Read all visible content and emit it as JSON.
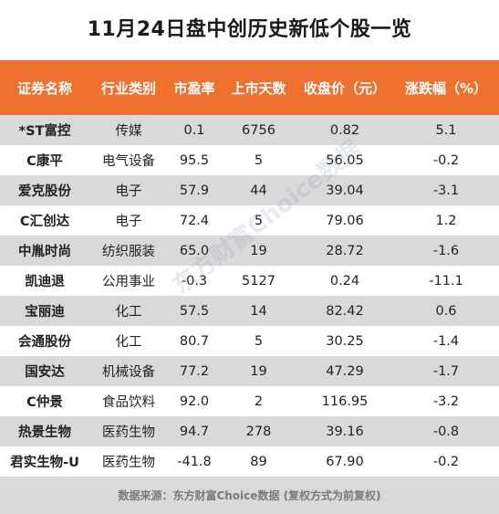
{
  "title": "11月24日盘中创历史新低个股一览",
  "colors": {
    "header_bg": "#ee7130",
    "row_alt_bg": "#d9d9d9",
    "footer_bg": "#d9d9d9"
  },
  "table": {
    "headers": [
      "证券名称",
      "行业类别",
      "市盈率",
      "上市天数",
      "收盘价（元）",
      "涨跌幅（%）"
    ],
    "rows": [
      [
        "*ST富控",
        "传媒",
        "0.1",
        "6756",
        "0.82",
        "5.1"
      ],
      [
        "C康平",
        "电气设备",
        "95.5",
        "5",
        "56.05",
        "-0.2"
      ],
      [
        "爱克股份",
        "电子",
        "57.9",
        "44",
        "39.04",
        "-3.1"
      ],
      [
        "C汇创达",
        "电子",
        "72.4",
        "5",
        "79.06",
        "1.2"
      ],
      [
        "中胤时尚",
        "纺织服装",
        "65.0",
        "19",
        "28.72",
        "-1.6"
      ],
      [
        "凯迪退",
        "公用事业",
        "-0.3",
        "5127",
        "0.24",
        "-11.1"
      ],
      [
        "宝丽迪",
        "化工",
        "57.5",
        "14",
        "82.42",
        "0.6"
      ],
      [
        "会通股份",
        "化工",
        "80.7",
        "5",
        "30.25",
        "-1.4"
      ],
      [
        "国安达",
        "机械设备",
        "77.2",
        "19",
        "47.29",
        "-1.7"
      ],
      [
        "C仲景",
        "食品饮料",
        "92.0",
        "2",
        "116.95",
        "-3.2"
      ],
      [
        "热景生物",
        "医药生物",
        "94.7",
        "278",
        "39.16",
        "-0.8"
      ],
      [
        "君实生物-U",
        "医药生物",
        "-41.8",
        "89",
        "67.90",
        "-0.2"
      ]
    ]
  },
  "footer": "数据来源：东方财富Choice数据   (复权方式为前复权)",
  "watermark": "东方财富Choice数据"
}
